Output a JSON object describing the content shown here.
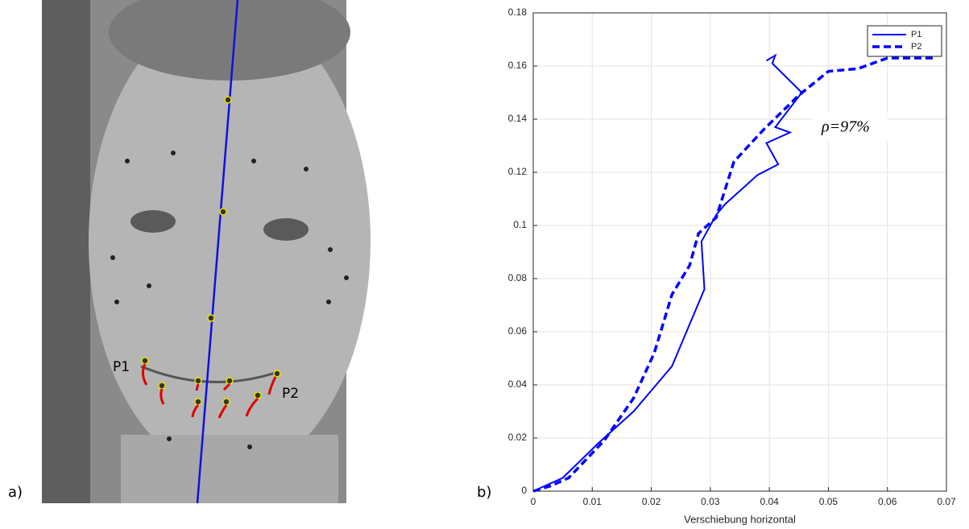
{
  "panel_labels": [
    "a)",
    "b)"
  ],
  "photo": {
    "point_labels": [
      "P1",
      "P2"
    ]
  },
  "chart_data": {
    "type": "line",
    "x_label": "Verschiebung horizontal",
    "annotation": "ρ=97%",
    "xlim": [
      0,
      0.07
    ],
    "xticks": [
      0,
      0.01,
      0.02,
      0.03,
      0.04,
      0.05,
      0.06,
      0.07
    ],
    "ylim": [
      0,
      0.18
    ],
    "yticks": [
      0,
      0.02,
      0.04,
      0.06,
      0.08,
      0.1,
      0.12,
      0.14,
      0.16,
      0.18
    ],
    "grid": true,
    "legend": "upper right",
    "series": [
      {
        "name": "P1",
        "color": "#0000ff",
        "line_style": "solid",
        "x": [
          0,
          0.005,
          0.011,
          0.017,
          0.0235,
          0.029,
          0.0285,
          0.031,
          0.0325,
          0.038,
          0.0415,
          0.0395,
          0.0435,
          0.041,
          0.0455,
          0.0405,
          0.041,
          0.0395
        ],
        "values": [
          0,
          0.005,
          0.018,
          0.03,
          0.047,
          0.076,
          0.094,
          0.104,
          0.108,
          0.119,
          0.123,
          0.131,
          0.135,
          0.137,
          0.15,
          0.161,
          0.164,
          0.162
        ]
      },
      {
        "name": "P2",
        "color": "#0000ff",
        "line_style": "dashed",
        "x": [
          0,
          0.003,
          0.006,
          0.012,
          0.017,
          0.0205,
          0.0235,
          0.0265,
          0.028,
          0.031,
          0.034,
          0.039,
          0.045,
          0.05,
          0.055,
          0.06,
          0.068
        ],
        "values": [
          0,
          0.002,
          0.005,
          0.019,
          0.035,
          0.052,
          0.074,
          0.085,
          0.097,
          0.103,
          0.124,
          0.136,
          0.149,
          0.158,
          0.159,
          0.163,
          0.163
        ]
      }
    ]
  }
}
